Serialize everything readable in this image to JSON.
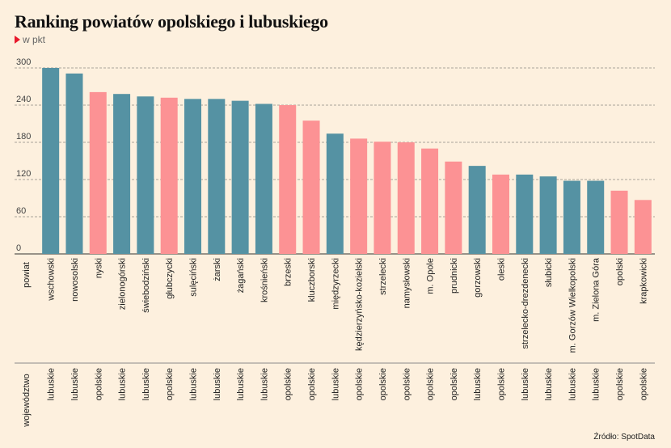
{
  "title": "Ranking powiatów opolskiego i lubuskiego",
  "subtitle": "w pkt",
  "source": "Źródło: SpotData",
  "colors": {
    "lubuskie": "#5592a3",
    "opolskie": "#fc9294",
    "background": "#fdf0de",
    "accent": "#e8192c"
  },
  "chart_data": {
    "type": "bar",
    "title": "Ranking powiatów opolskiego i lubuskiego",
    "subtitle": "w pkt",
    "ylim": [
      0,
      300
    ],
    "yticks": [
      0,
      60,
      120,
      180,
      240,
      300
    ],
    "grid": true,
    "row_labels": {
      "powiat": "powiat",
      "wojewodztwo": "województwo"
    },
    "categories": [
      "wschowski",
      "nowosolski",
      "nyski",
      "zielonogórski",
      "świebodziński",
      "głubczycki",
      "sulęciński",
      "żarski",
      "żagański",
      "krośnieński",
      "brzeski",
      "kluczborski",
      "międzyrzecki",
      "kędzierzyńsko-kozielski",
      "strzelecki",
      "namysłowski",
      "m. Opole",
      "prudnicki",
      "gorzowski",
      "oleski",
      "strzelecko-drezdenecki",
      "słubicki",
      "m. Gorzów Wielkopolski",
      "m. Zielona Góra",
      "opolski",
      "krapkowicki"
    ],
    "voivodeships": [
      "lubuskie",
      "lubuskie",
      "opolskie",
      "lubuskie",
      "lubuskie",
      "opolskie",
      "lubuskie",
      "lubuskie",
      "lubuskie",
      "lubuskie",
      "opolskie",
      "opolskie",
      "lubuskie",
      "opolskie",
      "opolskie",
      "opolskie",
      "opolskie",
      "opolskie",
      "lubuskie",
      "opolskie",
      "lubuskie",
      "lubuskie",
      "lubuskie",
      "lubuskie",
      "opolskie",
      "opolskie"
    ],
    "values": [
      300,
      291,
      261,
      258,
      254,
      252,
      250,
      250,
      247,
      242,
      240,
      215,
      194,
      186,
      181,
      180,
      170,
      149,
      142,
      128,
      128,
      125,
      118,
      118,
      102,
      87
    ]
  }
}
